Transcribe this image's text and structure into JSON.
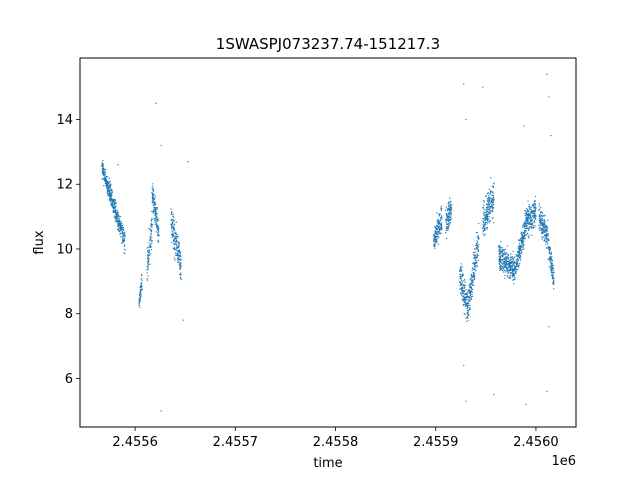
{
  "chart_data": {
    "type": "scatter",
    "title": "1SWASPJ073237.74-151217.3",
    "xlabel": "time",
    "ylabel": "flux",
    "x_offset_label": "1e6",
    "xlim": [
      2455545,
      2456040
    ],
    "ylim": [
      4.5,
      15.9
    ],
    "x_ticks": [
      2455600,
      2455700,
      2455800,
      2455900,
      2456000
    ],
    "x_tick_labels": [
      "2.4556",
      "2.4557",
      "2.4558",
      "2.4559",
      "2.4560"
    ],
    "y_ticks": [
      6,
      8,
      10,
      12,
      14
    ],
    "y_tick_labels": [
      "6",
      "8",
      "10",
      "12",
      "14"
    ],
    "grid": false,
    "legend": "none",
    "marker_color": "#1f77b4",
    "clusters": [
      {
        "x_start": 2455567,
        "x_end": 2455580,
        "y_start": 12.5,
        "y_end": 11.2,
        "spread": 0.3
      },
      {
        "x_start": 2455580,
        "x_end": 2455590,
        "y_start": 11.2,
        "y_end": 10.2,
        "spread": 0.3
      },
      {
        "x_start": 2455604,
        "x_end": 2455607,
        "y_start": 8.3,
        "y_end": 9.1,
        "spread": 0.25
      },
      {
        "x_start": 2455612,
        "x_end": 2455617,
        "y_start": 9.4,
        "y_end": 10.8,
        "spread": 0.5
      },
      {
        "x_start": 2455617,
        "x_end": 2455624,
        "y_start": 11.8,
        "y_end": 10.4,
        "spread": 0.4
      },
      {
        "x_start": 2455636,
        "x_end": 2455646,
        "y_start": 10.8,
        "y_end": 9.5,
        "spread": 0.5
      },
      {
        "x_start": 2455898,
        "x_end": 2455906,
        "y_start": 10.3,
        "y_end": 10.9,
        "spread": 0.4
      },
      {
        "x_start": 2455910,
        "x_end": 2455916,
        "y_start": 10.8,
        "y_end": 11.3,
        "spread": 0.4
      },
      {
        "x_start": 2455924,
        "x_end": 2455932,
        "y_start": 9.2,
        "y_end": 8.2,
        "spread": 0.5
      },
      {
        "x_start": 2455932,
        "x_end": 2455943,
        "y_start": 8.2,
        "y_end": 10.3,
        "spread": 0.5
      },
      {
        "x_start": 2455947,
        "x_end": 2455958,
        "y_start": 10.8,
        "y_end": 11.6,
        "spread": 0.5
      },
      {
        "x_start": 2455963,
        "x_end": 2455980,
        "y_start": 9.8,
        "y_end": 9.3,
        "spread": 0.4
      },
      {
        "x_start": 2455980,
        "x_end": 2455989,
        "y_start": 9.5,
        "y_end": 10.6,
        "spread": 0.4
      },
      {
        "x_start": 2455989,
        "x_end": 2456000,
        "y_start": 10.8,
        "y_end": 11.2,
        "spread": 0.5
      },
      {
        "x_start": 2456003,
        "x_end": 2456012,
        "y_start": 11.0,
        "y_end": 10.4,
        "spread": 0.4
      },
      {
        "x_start": 2456012,
        "x_end": 2456018,
        "y_start": 10.2,
        "y_end": 9.0,
        "spread": 0.4
      }
    ],
    "outliers": [
      {
        "x": 2455621,
        "y": 14.5
      },
      {
        "x": 2455626,
        "y": 13.2
      },
      {
        "x": 2455626,
        "y": 5.0
      },
      {
        "x": 2455653,
        "y": 12.7
      },
      {
        "x": 2455583,
        "y": 12.6
      },
      {
        "x": 2455648,
        "y": 7.8
      },
      {
        "x": 2455928,
        "y": 15.1
      },
      {
        "x": 2455930,
        "y": 14.0
      },
      {
        "x": 2455928,
        "y": 6.4
      },
      {
        "x": 2455930,
        "y": 5.3
      },
      {
        "x": 2455947,
        "y": 15.0
      },
      {
        "x": 2455958,
        "y": 5.5
      },
      {
        "x": 2455988,
        "y": 13.8
      },
      {
        "x": 2455990,
        "y": 5.2
      },
      {
        "x": 2456011,
        "y": 15.4
      },
      {
        "x": 2456013,
        "y": 14.7
      },
      {
        "x": 2456015,
        "y": 13.5
      },
      {
        "x": 2456011,
        "y": 5.6
      },
      {
        "x": 2456013,
        "y": 7.6
      },
      {
        "x": 2455955,
        "y": 12.2
      }
    ]
  }
}
